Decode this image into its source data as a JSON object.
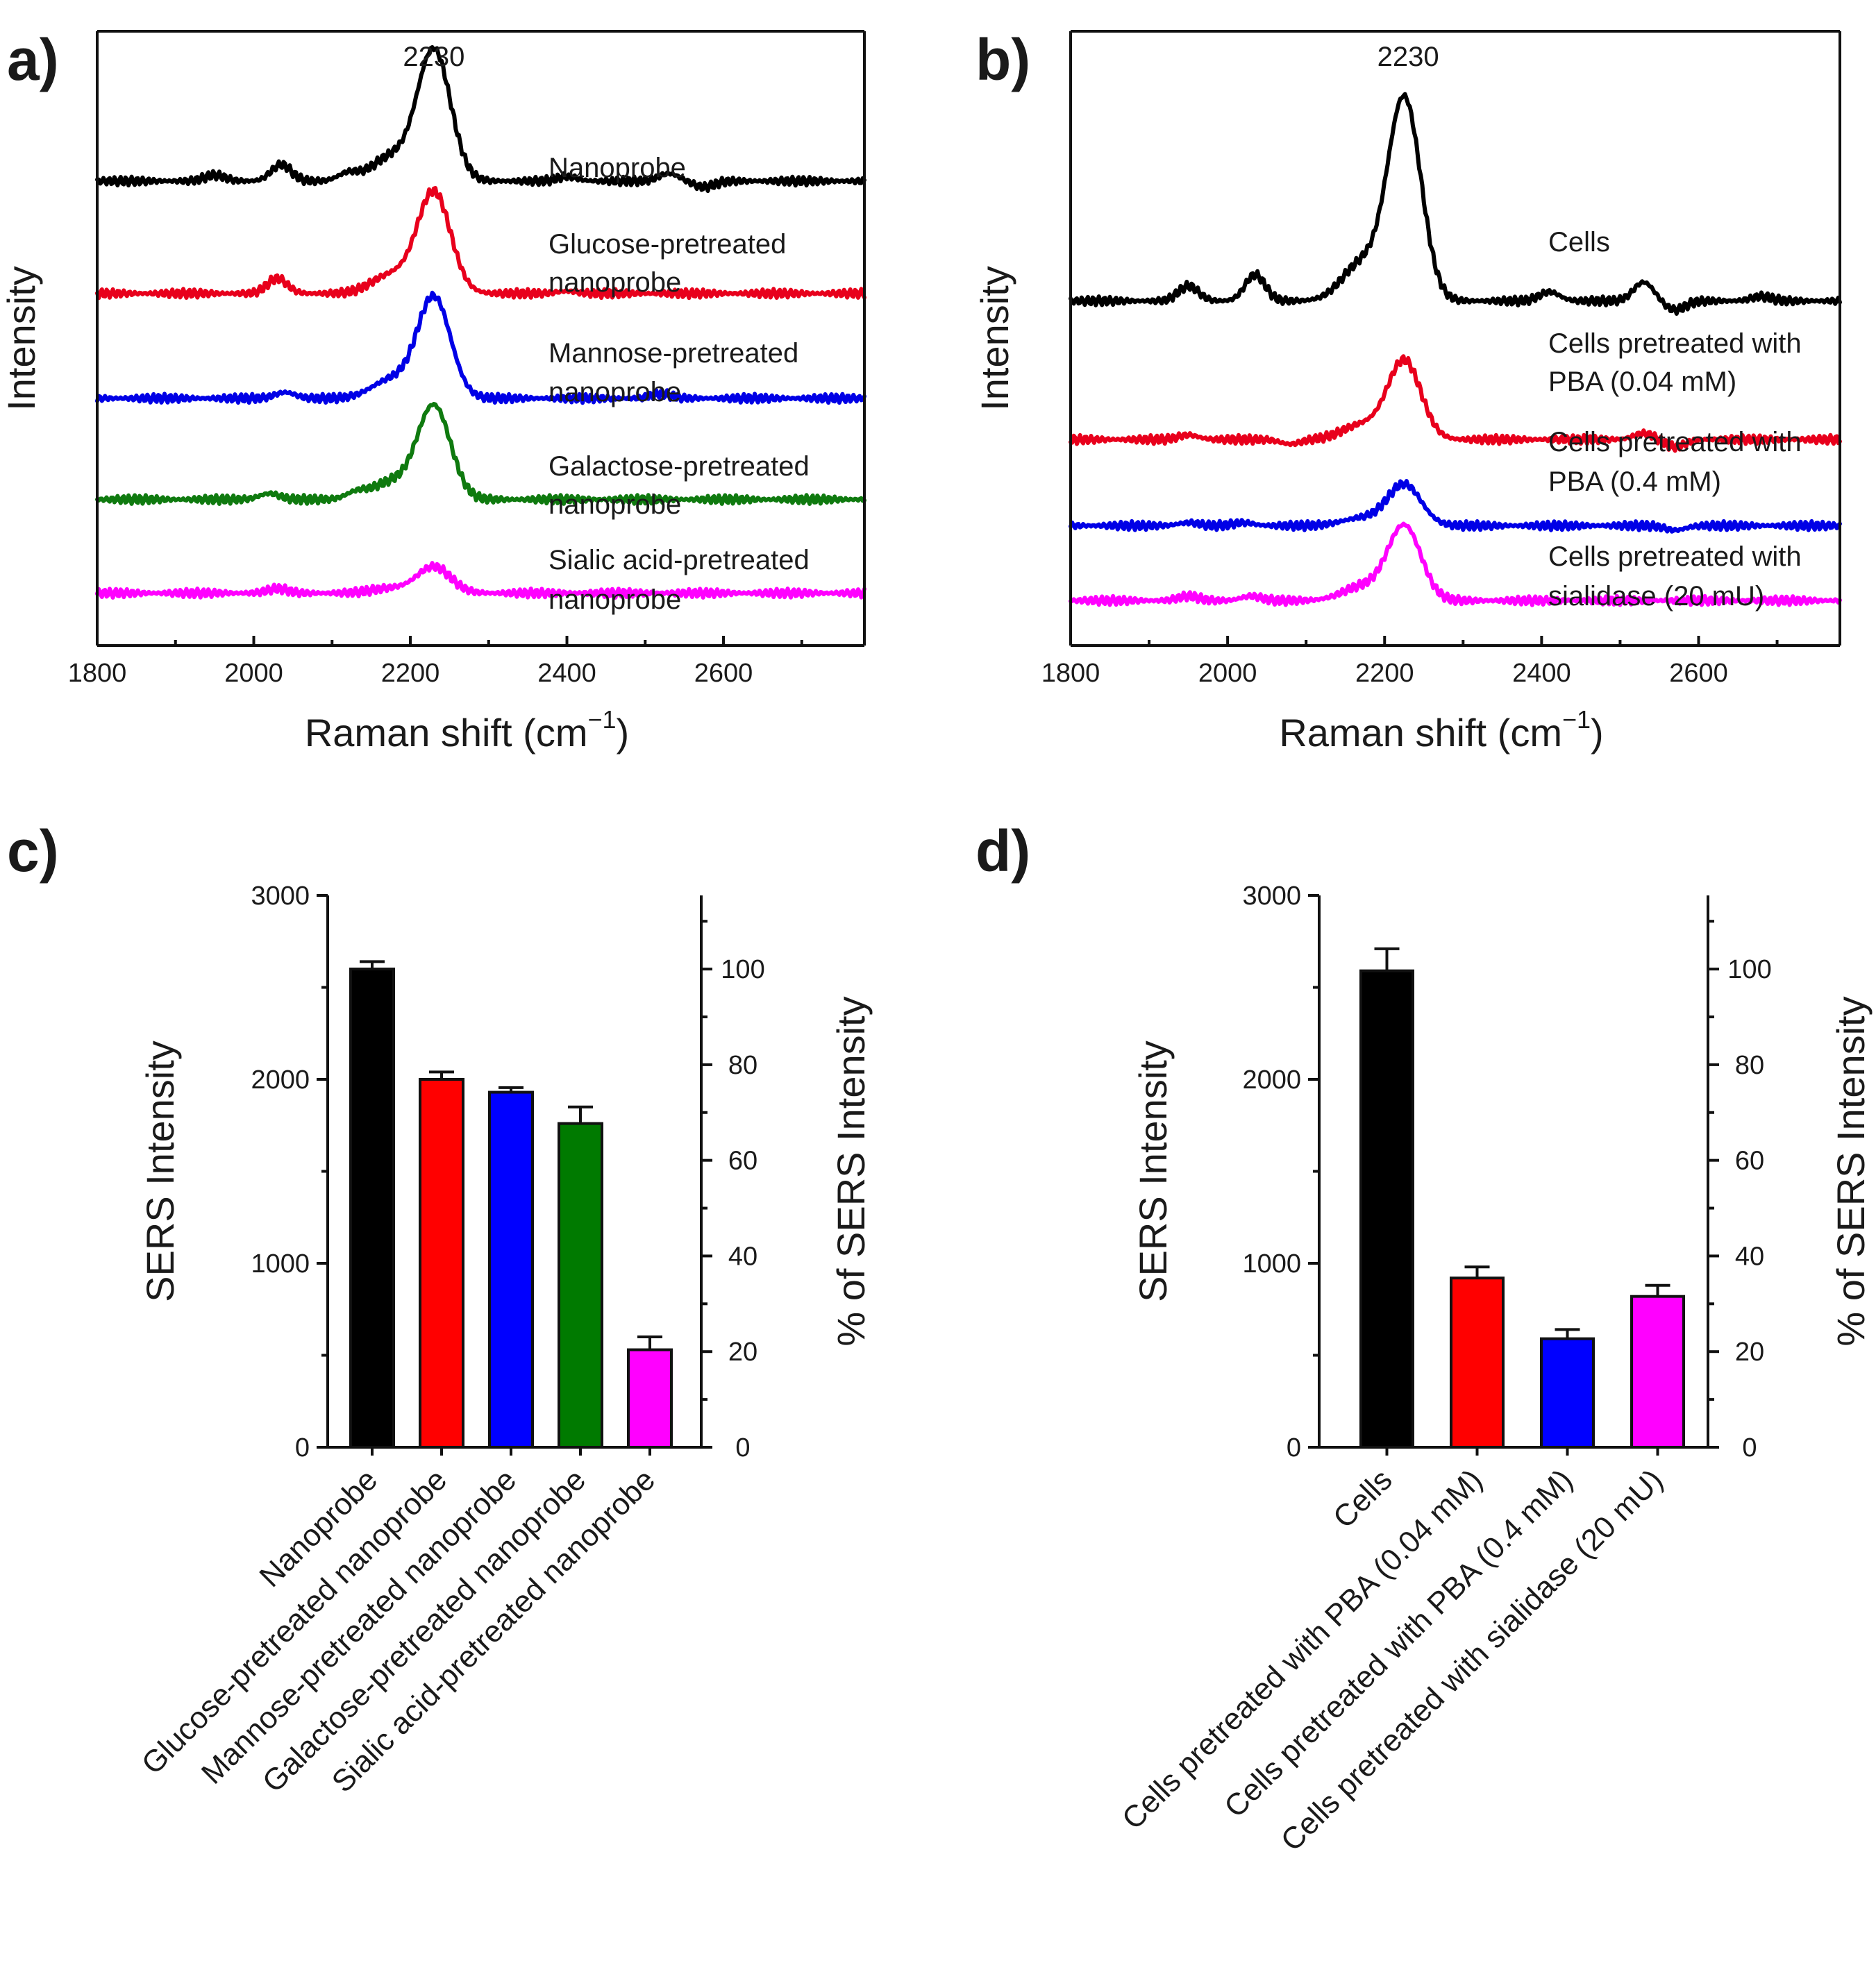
{
  "chart_data": [
    {
      "panel": "a)",
      "type": "line",
      "xlabel": "Raman shift (cm",
      "xlabel_sup": "−1",
      "xlabel_end": ")",
      "ylabel": "Intensity",
      "xlim": [
        1800,
        2780
      ],
      "xticks": [
        1800,
        2000,
        2200,
        2400,
        2600
      ],
      "peak_annotation": {
        "x": 2230,
        "text": "2230"
      },
      "series": [
        {
          "name": "Nanoprobe",
          "label_lines": [
            "Nanoprobe"
          ],
          "color": "#000000",
          "baseline": 6.2,
          "peak": 2230,
          "peak_height": 1.75,
          "side_bumps": [
            [
              1950,
              0.08
            ],
            [
              2035,
              0.22
            ],
            [
              2120,
              0.1
            ],
            [
              2400,
              0.06
            ],
            [
              2530,
              0.1
            ],
            [
              2575,
              -0.08
            ]
          ]
        },
        {
          "name": "Glucose-pretreated nanoprobe",
          "label_lines": [
            "Glucose-pretreated",
            "nanoprobe"
          ],
          "color": "#e8001c",
          "baseline": 4.7,
          "peak": 2230,
          "peak_height": 1.35,
          "side_bumps": [
            [
              2030,
              0.2
            ],
            [
              2400,
              0.03
            ]
          ]
        },
        {
          "name": "Mannose-pretreated nanoprobe",
          "label_lines": [
            "Mannose-pretreated",
            "nanoprobe"
          ],
          "color": "#0000e6",
          "baseline": 3.3,
          "peak": 2230,
          "peak_height": 1.35,
          "side_bumps": [
            [
              2040,
              0.08
            ],
            [
              2520,
              0.06
            ]
          ]
        },
        {
          "name": "Galactose-pretreated nanoprobe",
          "label_lines": [
            "Galactose-pretreated",
            "nanoprobe"
          ],
          "color": "#0f7a0f",
          "baseline": 1.95,
          "peak": 2230,
          "peak_height": 1.25,
          "side_bumps": [
            [
              2020,
              0.08
            ],
            [
              2130,
              0.08
            ]
          ]
        },
        {
          "name": "Sialic acid-pretreated nanoprobe",
          "label_lines": [
            "Sialic acid-pretreated",
            "nanoprobe"
          ],
          "color": "#ff00ff",
          "baseline": 0.7,
          "peak": 2230,
          "peak_height": 0.35,
          "side_bumps": [
            [
              2030,
              0.06
            ]
          ]
        }
      ]
    },
    {
      "panel": "b)",
      "type": "line",
      "xlabel": "Raman shift (cm",
      "xlabel_sup": "−1",
      "xlabel_end": ")",
      "ylabel": "Intensity",
      "xlim": [
        1800,
        2780
      ],
      "xticks": [
        1800,
        2000,
        2200,
        2400,
        2600
      ],
      "peak_annotation": {
        "x": 2230,
        "text": "2230"
      },
      "series": [
        {
          "name": "Cells",
          "label_lines": [
            "Cells"
          ],
          "color": "#000000",
          "baseline": 4.6,
          "peak": 2225,
          "peak_height": 2.7,
          "side_bumps": [
            [
              1950,
              0.2
            ],
            [
              2035,
              0.35
            ],
            [
              2410,
              0.12
            ],
            [
              2530,
              0.25
            ],
            [
              2570,
              -0.12
            ],
            [
              2680,
              0.06
            ]
          ]
        },
        {
          "name": "Cells pretreated with PBA (0.04 mM)",
          "label_lines": [
            "Cells pretreated with",
            "PBA (0.04 mM)"
          ],
          "color": "#e8001c",
          "baseline": 2.75,
          "peak": 2225,
          "peak_height": 1.05,
          "side_bumps": [
            [
              1950,
              0.06
            ],
            [
              2080,
              -0.06
            ],
            [
              2530,
              0.08
            ],
            [
              2570,
              -0.1
            ]
          ]
        },
        {
          "name": "Cells pretreated with PBA (0.4 mM)",
          "label_lines": [
            "Cells pretreated with",
            "PBA (0.4 mM)"
          ],
          "color": "#0000e6",
          "baseline": 1.6,
          "peak": 2225,
          "peak_height": 0.55,
          "side_bumps": [
            [
              1950,
              0.04
            ],
            [
              2020,
              0.04
            ],
            [
              2570,
              -0.06
            ]
          ]
        },
        {
          "name": "Cells pretreated with sialidase (20 mU)",
          "label_lines": [
            "Cells pretreated with",
            "sialidase (20 mU)"
          ],
          "color": "#ff00ff",
          "baseline": 0.6,
          "peak": 2225,
          "peak_height": 1.0,
          "side_bumps": [
            [
              1950,
              0.06
            ],
            [
              2030,
              0.06
            ]
          ]
        }
      ]
    },
    {
      "panel": "c)",
      "type": "bar",
      "ylabel": "SERS Intensity",
      "y2label": "% of SERS Intensity",
      "ylim": [
        0,
        3000
      ],
      "yticks": [
        0,
        1000,
        2000,
        3000
      ],
      "y2lim": [
        0,
        115.4
      ],
      "y2ticks": [
        0,
        20,
        40,
        60,
        80,
        100
      ],
      "categories": [
        "Nanoprobe",
        "Glucose-pretreated nanoprobe",
        "Mannose-pretreated nanoprobe",
        "Galactose-pretreated nanoprobe",
        "Sialic acid-pretreated nanoprobe"
      ],
      "values": [
        2600,
        2000,
        1930,
        1760,
        530
      ],
      "errors": [
        40,
        40,
        25,
        90,
        70
      ],
      "colors": [
        "#000000",
        "#ff0000",
        "#0000ff",
        "#007a00",
        "#ff00ff"
      ]
    },
    {
      "panel": "d)",
      "type": "bar",
      "ylabel": "SERS Intensity",
      "y2label": "% of SERS Intensity",
      "ylim": [
        0,
        3000
      ],
      "yticks": [
        0,
        1000,
        2000,
        3000
      ],
      "y2lim": [
        0,
        115.4
      ],
      "y2ticks": [
        0,
        20,
        40,
        60,
        80,
        100
      ],
      "categories": [
        "Cells",
        "Cells pretreated with PBA (0.04 mM)",
        "Cells pretreated with PBA (0.4 mM)",
        "Cells pretreated with sialidase (20 mU)"
      ],
      "values": [
        2590,
        920,
        590,
        820
      ],
      "errors": [
        120,
        60,
        50,
        60
      ],
      "colors": [
        "#000000",
        "#ff0000",
        "#0000ff",
        "#ff00ff"
      ]
    }
  ]
}
